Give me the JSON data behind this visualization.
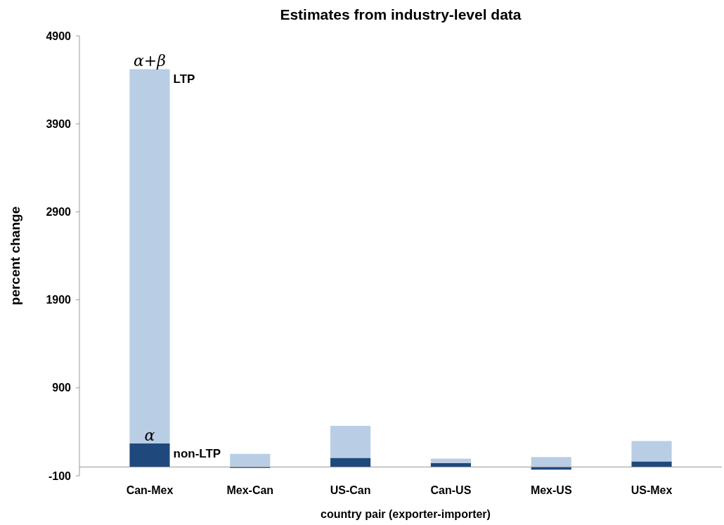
{
  "chart_data": {
    "type": "bar",
    "title": "Estimates from industry-level data",
    "xlabel": "country pair (exporter-importer)",
    "ylabel": "percent change",
    "categories": [
      "Can-Mex",
      "Mex-Can",
      "US-Can",
      "Can-US",
      "Mex-US",
      "US-Mex"
    ],
    "series": [
      {
        "color": "#1f497d",
        "values": [
          268,
          -11,
          104,
          46,
          -30,
          64
        ]
      },
      {
        "color": "#b9cde5",
        "values": [
          4253,
          149,
          364,
          49,
          113,
          231
        ]
      }
    ],
    "ylim": [
      -100,
      4900
    ],
    "yticks": [
      -100,
      900,
      1900,
      2900,
      3900,
      4900
    ],
    "grid": false,
    "stacked": true,
    "annotations": [
      {
        "text": "α+β",
        "x": "Can-Mex",
        "y": 4521
      },
      {
        "text": "LTP",
        "x": "Can-Mex",
        "y": 4521
      },
      {
        "text": "α",
        "x": "Can-Mex",
        "y": 268
      },
      {
        "text": "non-LTP",
        "x": "Can-Mex",
        "y": 268
      }
    ]
  }
}
